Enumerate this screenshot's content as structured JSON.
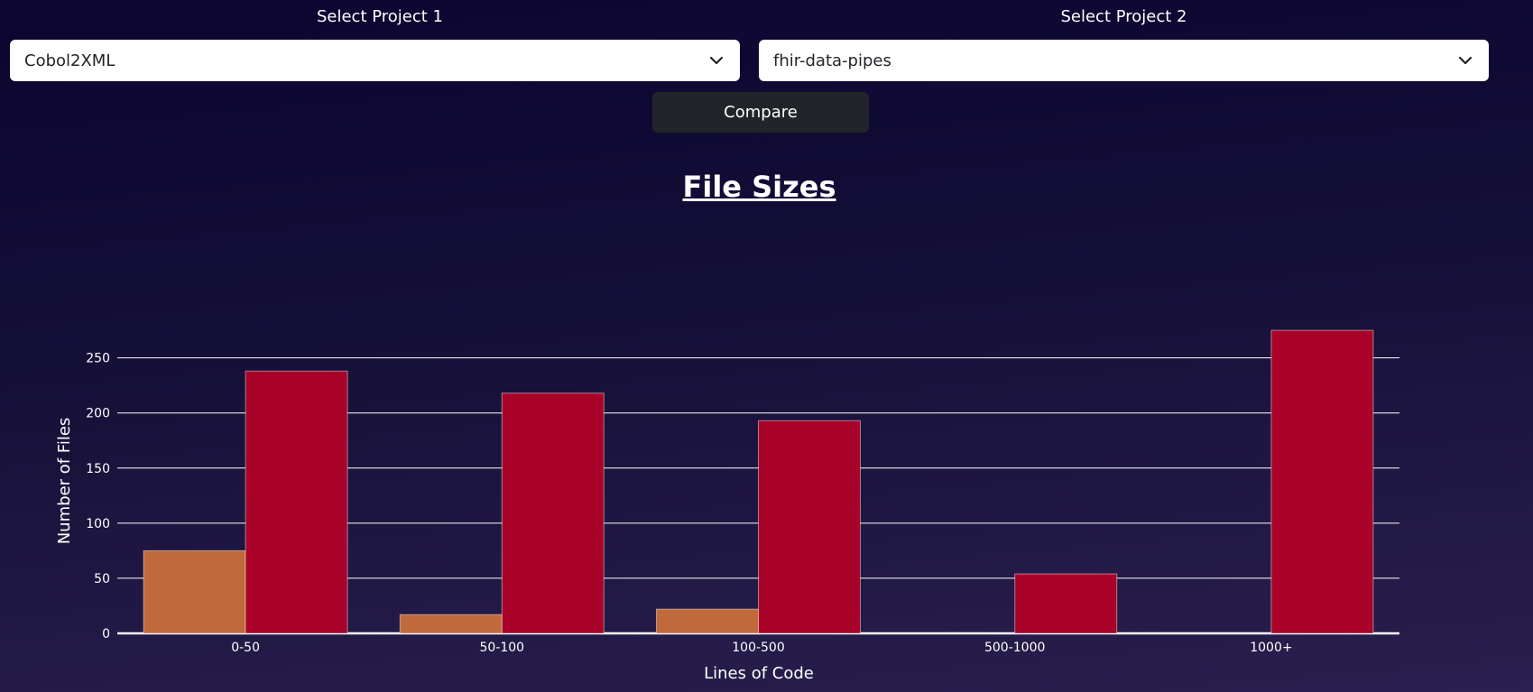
{
  "project1": {
    "label": "Select Project 1",
    "selected": "Cobol2XML"
  },
  "project2": {
    "label": "Select Project 2",
    "selected": "fhir-data-pipes"
  },
  "compare_label": "Compare",
  "icons": {
    "dropdown": "chevron-down-icon"
  },
  "chart_data": {
    "type": "bar",
    "title": "File Sizes",
    "xlabel": "Lines of Code",
    "ylabel": "Number of Files",
    "categories": [
      "0-50",
      "50-100",
      "100-500",
      "500-1000",
      "1000+"
    ],
    "series": [
      {
        "values": [
          75,
          17,
          22,
          0,
          0
        ],
        "color": "#c0693a"
      },
      {
        "values": [
          238,
          218,
          193,
          54,
          275
        ],
        "color": "#aa0329"
      }
    ],
    "ylim": [
      0,
      280
    ],
    "yticks": [
      0,
      50,
      100,
      150,
      200,
      250
    ],
    "grid": true
  }
}
